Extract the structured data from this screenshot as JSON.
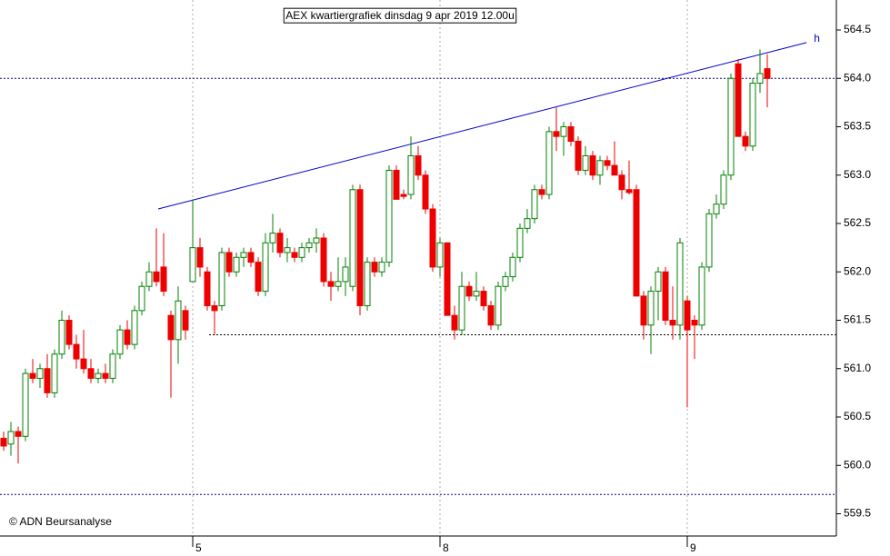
{
  "chart_data": {
    "type": "candlestick",
    "title": "AEX kwartiergrafiek dinsdag 9 apr 2019 12.00u",
    "source": "© ADN Beursanalyse",
    "categories": [
      null,
      null,
      null,
      null,
      null,
      null,
      null,
      null,
      null,
      null,
      null,
      null,
      null,
      null,
      null,
      null,
      null,
      null,
      null,
      null,
      null,
      null,
      null,
      null,
      null,
      null,
      "5",
      null,
      null,
      null,
      null,
      null,
      null,
      null,
      null,
      null,
      null,
      null,
      null,
      null,
      null,
      null,
      null,
      null,
      null,
      null,
      null,
      null,
      null,
      null,
      null,
      null,
      null,
      null,
      null,
      null,
      null,
      null,
      null,
      null,
      "8",
      null,
      null,
      null,
      null,
      null,
      null,
      null,
      null,
      null,
      null,
      null,
      null,
      null,
      null,
      null,
      null,
      null,
      null,
      null,
      null,
      null,
      null,
      null,
      null,
      null,
      null,
      null,
      null,
      null,
      null,
      null,
      null,
      null,
      "9",
      null,
      null,
      null,
      null,
      null,
      null,
      null,
      null,
      null,
      null,
      null
    ],
    "open": [
      560.28,
      560.22,
      560.35,
      560.3,
      560.95,
      560.9,
      561.0,
      560.75,
      561.15,
      561.5,
      561.25,
      561.1,
      561.0,
      560.9,
      560.95,
      560.9,
      561.15,
      561.4,
      561.25,
      561.6,
      561.85,
      562.0,
      562.05,
      561.55,
      561.3,
      561.6,
      561.9,
      562.25,
      562.0,
      561.65,
      561.65,
      562.2,
      562.0,
      562.15,
      562.2,
      562.1,
      561.8,
      562.3,
      562.4,
      562.2,
      562.2,
      562.15,
      562.25,
      562.3,
      562.35,
      561.9,
      561.85,
      561.9,
      561.85,
      562.85,
      561.65,
      562.1,
      562.0,
      562.1,
      563.05,
      562.8,
      562.8,
      563.2,
      563.0,
      562.65,
      562.05,
      562.3,
      561.55,
      561.4,
      561.85,
      561.75,
      561.8,
      561.65,
      561.45,
      561.85,
      561.95,
      562.15,
      562.45,
      562.55,
      562.85,
      562.8,
      563.45,
      563.4,
      563.5,
      563.35,
      563.05,
      563.2,
      563.0,
      563.15,
      563.1,
      563.0,
      562.85,
      562.85,
      561.75,
      561.45,
      561.8,
      562.0,
      561.5,
      561.45,
      561.7,
      561.5,
      561.45,
      562.05,
      562.6,
      562.7,
      563.0,
      564.15,
      563.4,
      563.3,
      563.95,
      564.1
    ],
    "high": [
      560.35,
      560.45,
      560.4,
      561.0,
      561.1,
      561.05,
      561.15,
      561.2,
      561.6,
      561.55,
      561.35,
      561.4,
      561.1,
      561.0,
      561.05,
      561.2,
      561.45,
      561.5,
      561.65,
      561.9,
      562.1,
      562.45,
      562.4,
      561.6,
      561.85,
      561.65,
      562.75,
      562.35,
      562.05,
      561.7,
      562.25,
      562.25,
      562.2,
      562.25,
      562.25,
      562.15,
      562.4,
      562.6,
      562.45,
      562.35,
      562.25,
      562.3,
      562.35,
      562.45,
      562.4,
      562.0,
      562.15,
      562.15,
      562.9,
      562.9,
      562.15,
      562.15,
      562.15,
      563.1,
      563.1,
      562.85,
      563.4,
      563.3,
      563.05,
      562.7,
      562.35,
      562.3,
      561.65,
      562.0,
      561.9,
      562.0,
      561.85,
      561.7,
      561.9,
      562.0,
      562.2,
      562.5,
      562.65,
      562.9,
      562.9,
      563.5,
      563.7,
      563.55,
      563.55,
      563.4,
      563.3,
      563.25,
      563.2,
      563.2,
      563.35,
      563.05,
      563.15,
      562.9,
      561.8,
      561.85,
      562.05,
      562.05,
      561.85,
      562.35,
      561.75,
      561.55,
      562.1,
      562.65,
      562.8,
      563.05,
      564.05,
      564.2,
      563.45,
      564.0,
      564.3,
      564.25
    ],
    "low": [
      560.15,
      560.1,
      560.02,
      560.25,
      560.85,
      560.8,
      560.7,
      560.7,
      561.1,
      561.2,
      561.0,
      560.95,
      560.85,
      560.85,
      560.85,
      560.85,
      561.1,
      561.2,
      561.2,
      561.55,
      561.8,
      561.85,
      561.75,
      560.7,
      561.05,
      561.3,
      561.9,
      561.95,
      561.6,
      561.35,
      561.6,
      561.95,
      561.95,
      562.05,
      562.05,
      561.75,
      561.75,
      562.2,
      562.15,
      562.1,
      562.1,
      562.1,
      562.2,
      562.2,
      561.85,
      561.7,
      561.8,
      561.75,
      561.8,
      561.55,
      561.6,
      561.95,
      561.95,
      562.05,
      562.75,
      562.75,
      562.75,
      562.95,
      562.6,
      562.0,
      561.95,
      561.55,
      561.3,
      561.35,
      561.7,
      561.7,
      561.6,
      561.4,
      561.4,
      561.8,
      561.9,
      562.1,
      562.4,
      562.5,
      562.75,
      562.75,
      563.25,
      563.2,
      563.3,
      563.0,
      563.0,
      562.95,
      562.9,
      563.05,
      563.0,
      562.75,
      562.8,
      561.75,
      561.3,
      561.15,
      561.5,
      561.45,
      561.3,
      561.3,
      560.6,
      561.1,
      561.4,
      562.0,
      562.55,
      562.65,
      562.95,
      563.4,
      563.25,
      563.25,
      563.85,
      563.7
    ],
    "close": [
      560.2,
      560.35,
      560.3,
      560.95,
      560.9,
      561.0,
      560.75,
      561.15,
      561.5,
      561.25,
      561.1,
      561.0,
      560.9,
      560.95,
      560.9,
      561.15,
      561.4,
      561.25,
      561.6,
      561.85,
      562.0,
      561.9,
      561.8,
      561.3,
      561.7,
      561.4,
      562.25,
      562.05,
      561.65,
      561.6,
      562.2,
      562.0,
      562.15,
      562.2,
      562.1,
      561.8,
      562.3,
      562.4,
      562.2,
      562.25,
      562.15,
      562.25,
      562.3,
      562.35,
      561.9,
      561.85,
      561.9,
      562.05,
      562.85,
      561.65,
      562.1,
      562.0,
      562.1,
      563.05,
      562.75,
      562.78,
      563.2,
      563.0,
      562.65,
      562.05,
      562.3,
      561.55,
      561.4,
      561.85,
      561.75,
      561.8,
      561.65,
      561.45,
      561.85,
      561.95,
      562.15,
      562.45,
      562.55,
      562.85,
      562.8,
      563.45,
      563.4,
      563.5,
      563.35,
      563.05,
      563.2,
      563.0,
      563.15,
      563.1,
      563.0,
      562.85,
      562.82,
      561.75,
      561.45,
      561.8,
      562.0,
      561.5,
      561.45,
      562.3,
      561.4,
      561.45,
      562.05,
      562.6,
      562.7,
      563.0,
      564.0,
      563.4,
      563.3,
      563.95,
      564.05,
      564.0
    ],
    "up_color": "#008000",
    "down_color": "#ee0000",
    "xlim": [
      -0.5,
      114.5
    ],
    "ylim": [
      559.27,
      564.81
    ],
    "yticks": [
      {
        "value": 559.5,
        "label": "559.5"
      },
      {
        "value": 560.0,
        "label": "560.0"
      },
      {
        "value": 560.5,
        "label": "560.5"
      },
      {
        "value": 561.0,
        "label": "561.0"
      },
      {
        "value": 561.5,
        "label": "561.5"
      },
      {
        "value": 562.0,
        "label": "562.0"
      },
      {
        "value": 562.5,
        "label": "562.5"
      },
      {
        "value": 563.0,
        "label": "563.0"
      },
      {
        "value": 563.5,
        "label": "563.5"
      },
      {
        "value": 564.0,
        "label": "564.0"
      },
      {
        "value": 564.5,
        "label": "564.5"
      }
    ],
    "grid": true,
    "trendline": {
      "label": "h",
      "x": [
        21.25,
        110.4
      ],
      "y": [
        562.65,
        564.37
      ],
      "color": "#0000cc"
    },
    "hlines": [
      {
        "y": 564.0,
        "x": [
          -0.5,
          114.5
        ],
        "color": "#000080"
      },
      {
        "y": 559.7,
        "x": [
          -0.5,
          114.5
        ],
        "color": "#000080"
      },
      {
        "y": 561.35,
        "x": [
          28.25,
          114.5
        ],
        "color": "#000000"
      }
    ]
  }
}
